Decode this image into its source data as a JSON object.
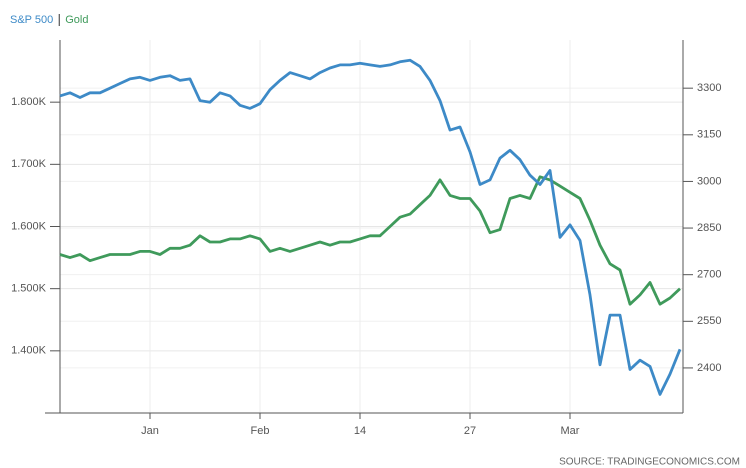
{
  "chart_data": {
    "type": "line",
    "categories": [
      null,
      null,
      null,
      null,
      null,
      null,
      null,
      null,
      null,
      "Jan",
      null,
      null,
      null,
      null,
      null,
      null,
      null,
      null,
      null,
      null,
      "Feb",
      null,
      null,
      null,
      null,
      null,
      null,
      null,
      null,
      null,
      "14",
      null,
      null,
      null,
      null,
      null,
      null,
      null,
      null,
      null,
      null,
      "27",
      null,
      null,
      null,
      null,
      null,
      null,
      null,
      null,
      null,
      "Mar",
      null,
      null,
      null,
      null,
      null,
      null,
      null,
      null,
      null,
      null,
      null
    ],
    "series": [
      {
        "name": "S&P 500",
        "color": "#3d8ac7",
        "axis": "y2",
        "values": [
          3275,
          3285,
          3270,
          3285,
          3285,
          3300,
          3315,
          3330,
          3335,
          3325,
          3335,
          3340,
          3325,
          3330,
          3260,
          3255,
          3285,
          3275,
          3245,
          3235,
          3250,
          3295,
          3325,
          3350,
          3340,
          3330,
          3350,
          3365,
          3375,
          3375,
          3380,
          3375,
          3370,
          3375,
          3385,
          3390,
          3370,
          3325,
          3260,
          3165,
          3175,
          3095,
          2990,
          3005,
          3075,
          3100,
          3070,
          3020,
          2990,
          3035,
          2820,
          2860,
          2810,
          2635,
          2410,
          2570,
          2570,
          2395,
          2425,
          2405,
          2315,
          2380,
          2460
        ]
      },
      {
        "name": "Gold",
        "color": "#3f9a5b",
        "values": [
          1555,
          1550,
          1555,
          1545,
          1550,
          1555,
          1555,
          1555,
          1560,
          1560,
          1555,
          1565,
          1565,
          1570,
          1585,
          1575,
          1575,
          1580,
          1580,
          1585,
          1580,
          1560,
          1565,
          1560,
          1565,
          1570,
          1575,
          1570,
          1575,
          1575,
          1580,
          1585,
          1585,
          1600,
          1615,
          1620,
          1635,
          1650,
          1675,
          1650,
          1645,
          1645,
          1625,
          1590,
          1595,
          1645,
          1650,
          1645,
          1680,
          1675,
          1665,
          1655,
          1645,
          1610,
          1570,
          1540,
          1530,
          1475,
          1490,
          1510,
          1475,
          1485,
          1500
        ]
      }
    ],
    "ylim": [
      1300,
      1900
    ],
    "yticks": [
      {
        "value": 1400,
        "label": "1.400K"
      },
      {
        "value": 1500,
        "label": "1.500K"
      },
      {
        "value": 1600,
        "label": "1.600K"
      },
      {
        "value": 1700,
        "label": "1.700K"
      },
      {
        "value": 1800,
        "label": "1.800K"
      }
    ],
    "y2lim": [
      2255,
      3455
    ],
    "y2ticks": [
      2400,
      2550,
      2700,
      2850,
      3000,
      3150,
      3300
    ],
    "grid": true,
    "source": "SOURCE: TRADINGECONOMICS.COM"
  }
}
